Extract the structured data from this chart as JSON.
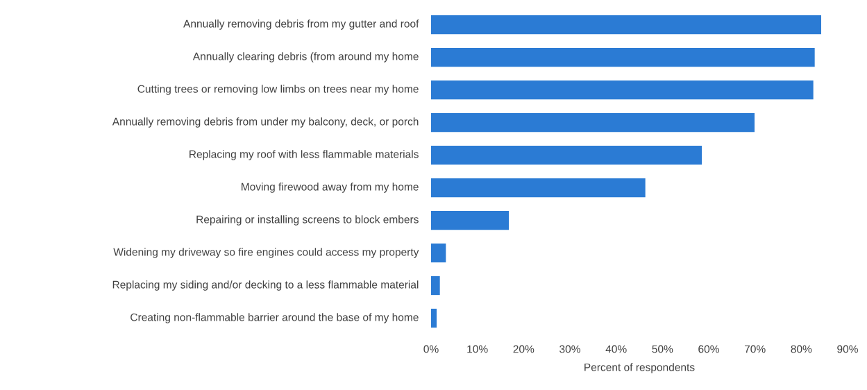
{
  "chart_data": {
    "type": "bar",
    "orientation": "horizontal",
    "categories": [
      "Annually removing debris from my gutter and roof",
      "Annually clearing debris (from around my home",
      "Cutting trees or removing low limbs on trees near my home",
      "Annually removing debris from under my balcony, deck, or porch",
      "Replacing my roof with less flammable materials",
      "Moving firewood away from my home",
      "Repairing or installing screens to block embers",
      "Widening my driveway so fire engines could access my property",
      "Replacing my siding and/or decking to a less flammable material",
      "Creating non-flammable barrier around the base of my home"
    ],
    "values": [
      84.3,
      82.9,
      82.6,
      69.9,
      58.5,
      46.3,
      16.8,
      3.2,
      1.9,
      1.2
    ],
    "color": "#2b7bd4",
    "xlim": [
      0,
      90
    ],
    "xticks": [
      {
        "value": 0,
        "label": "0%"
      },
      {
        "value": 10,
        "label": "10%"
      },
      {
        "value": 20,
        "label": "20%"
      },
      {
        "value": 30,
        "label": "30%"
      },
      {
        "value": 40,
        "label": "40%"
      },
      {
        "value": 50,
        "label": "50%"
      },
      {
        "value": 60,
        "label": "60%"
      },
      {
        "value": 70,
        "label": "70%"
      },
      {
        "value": 80,
        "label": "80%"
      },
      {
        "value": 90,
        "label": "90%"
      }
    ],
    "xlabel": "Percent of respondents"
  }
}
